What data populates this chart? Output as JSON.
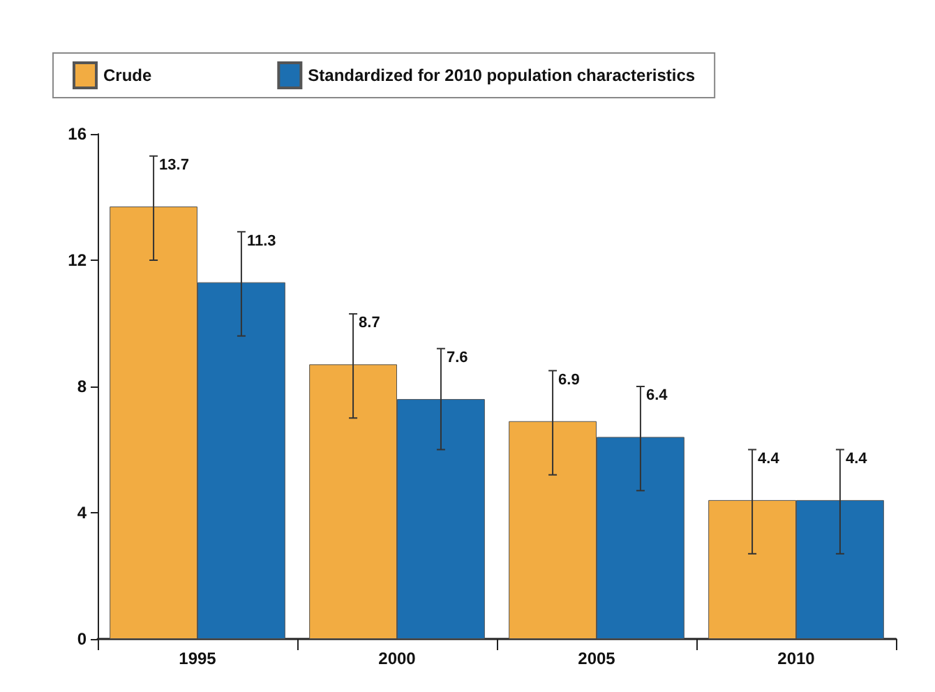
{
  "chart_data": {
    "type": "bar",
    "categories": [
      "1995",
      "2000",
      "2005",
      "2010"
    ],
    "series": [
      {
        "name": "Crude",
        "color": "#f2ac42",
        "values": [
          13.7,
          8.7,
          6.9,
          4.4
        ],
        "errors": [
          [
            12.0,
            15.3
          ],
          [
            7.0,
            10.3
          ],
          [
            5.2,
            8.5
          ],
          [
            2.7,
            6.0
          ]
        ]
      },
      {
        "name": "Standardized for 2010 population characteristics",
        "color": "#1c6fb1",
        "values": [
          11.3,
          7.6,
          6.4,
          4.4
        ],
        "errors": [
          [
            9.6,
            12.9
          ],
          [
            6.0,
            9.2
          ],
          [
            4.7,
            8.0
          ],
          [
            2.7,
            6.0
          ]
        ]
      }
    ],
    "ylim": [
      0,
      16
    ],
    "yticks": [
      0,
      4,
      8,
      12,
      16
    ],
    "grid": false,
    "legend": "top",
    "data_labels": true
  }
}
